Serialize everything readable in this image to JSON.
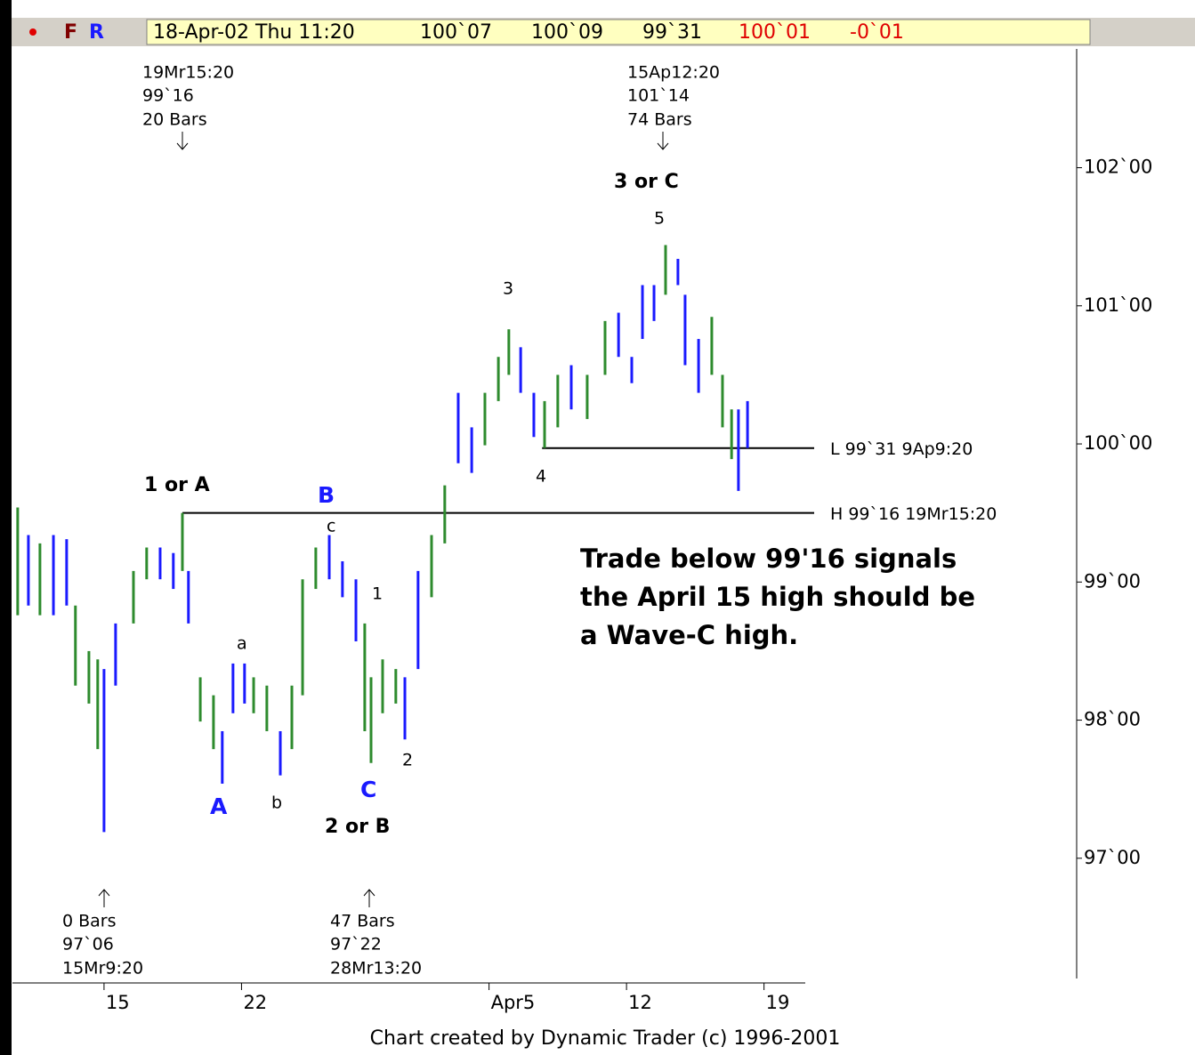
{
  "header": {
    "flag1": "F",
    "flag2": "R",
    "date": "18-Apr-02 Thu 11:20",
    "open": "100`07",
    "high": "100`09",
    "low": "99`31",
    "close": "100`01",
    "change": "-0`01"
  },
  "chart_data": {
    "type": "range",
    "footer": "Chart created by Dynamic Trader (c) 1996-2001",
    "xlim": [
      -3.33,
      25.5
    ],
    "xticks": [
      {
        "value": 0,
        "label": "15"
      },
      {
        "value": 5,
        "label": "22"
      },
      {
        "value": 14,
        "label": "Apr5"
      },
      {
        "value": 19,
        "label": "12"
      },
      {
        "value": 24,
        "label": "19"
      }
    ],
    "ylim": [
      96.11,
      102.86
    ],
    "yticks": [
      {
        "value": 102,
        "label": "102`00"
      },
      {
        "value": 101,
        "label": "101`00"
      },
      {
        "value": 100,
        "label": "100`00"
      },
      {
        "value": 99,
        "label": "99`00"
      },
      {
        "value": 98,
        "label": "98`00"
      },
      {
        "value": 97,
        "label": "97`00"
      }
    ],
    "bars": {
      "x": [
        -3.14,
        -2.75,
        -2.33,
        -1.84,
        -1.36,
        -1.04,
        -0.55,
        -0.23,
        0,
        0.42,
        1.07,
        1.55,
        2.04,
        2.52,
        2.85,
        3.07,
        3.5,
        3.98,
        4.3,
        4.69,
        5.11,
        5.44,
        5.92,
        6.41,
        6.83,
        7.22,
        7.7,
        8.19,
        8.67,
        9.16,
        9.48,
        9.71,
        10.13,
        10.61,
        10.94,
        11.42,
        11.91,
        12.39,
        12.88,
        13.37,
        13.85,
        14.34,
        14.72,
        15.15,
        15.63,
        16.02,
        16.5,
        16.99,
        17.57,
        18.22,
        18.71,
        19.19,
        19.58,
        20,
        20.42,
        20.87,
        21.13,
        21.62,
        22.1,
        22.49,
        22.82,
        23.07,
        23.4
      ],
      "high": [
        99.54,
        99.34,
        99.28,
        99.34,
        99.31,
        98.83,
        98.5,
        98.44,
        98.37,
        98.7,
        99.08,
        99.25,
        99.25,
        99.21,
        99.5,
        99.08,
        98.31,
        98.18,
        97.92,
        98.41,
        98.41,
        98.31,
        98.25,
        97.92,
        98.25,
        99.02,
        99.25,
        99.34,
        99.15,
        99.02,
        98.7,
        98.31,
        98.44,
        98.37,
        98.31,
        99.08,
        99.34,
        99.7,
        100.37,
        100.12,
        100.37,
        100.63,
        100.83,
        100.7,
        100.37,
        100.31,
        100.5,
        100.57,
        100.5,
        100.89,
        100.95,
        100.63,
        101.15,
        101.15,
        101.44,
        101.34,
        101.08,
        100.76,
        100.92,
        100.5,
        100.25,
        100.25,
        100.31
      ],
      "low": [
        98.76,
        98.83,
        98.76,
        98.76,
        98.83,
        98.25,
        98.12,
        97.79,
        97.19,
        98.25,
        98.7,
        99.02,
        99.02,
        98.95,
        99.08,
        98.7,
        97.99,
        97.79,
        97.54,
        98.05,
        98.12,
        98.05,
        97.92,
        97.6,
        97.79,
        98.18,
        98.95,
        99.02,
        98.89,
        98.57,
        97.92,
        97.69,
        98.05,
        98.12,
        97.86,
        98.37,
        98.89,
        99.28,
        99.86,
        99.79,
        99.99,
        100.31,
        100.5,
        100.37,
        100.05,
        99.97,
        100.12,
        100.25,
        100.18,
        100.5,
        100.63,
        100.44,
        100.76,
        100.89,
        101.08,
        101.15,
        100.57,
        100.37,
        100.5,
        100.12,
        99.89,
        99.66,
        99.97
      ],
      "color": [
        "#2e8b2e",
        "#1a1aff",
        "#2e8b2e",
        "#1a1aff",
        "#1a1aff",
        "#2e8b2e",
        "#2e8b2e",
        "#2e8b2e",
        "#1a1aff",
        "#1a1aff",
        "#2e8b2e",
        "#2e8b2e",
        "#1a1aff",
        "#1a1aff",
        "#2e8b2e",
        "#1a1aff",
        "#2e8b2e",
        "#2e8b2e",
        "#1a1aff",
        "#1a1aff",
        "#1a1aff",
        "#2e8b2e",
        "#2e8b2e",
        "#1a1aff",
        "#2e8b2e",
        "#2e8b2e",
        "#2e8b2e",
        "#1a1aff",
        "#1a1aff",
        "#1a1aff",
        "#2e8b2e",
        "#2e8b2e",
        "#2e8b2e",
        "#2e8b2e",
        "#1a1aff",
        "#1a1aff",
        "#2e8b2e",
        "#2e8b2e",
        "#1a1aff",
        "#1a1aff",
        "#2e8b2e",
        "#2e8b2e",
        "#2e8b2e",
        "#1a1aff",
        "#1a1aff",
        "#2e8b2e",
        "#2e8b2e",
        "#1a1aff",
        "#2e8b2e",
        "#2e8b2e",
        "#1a1aff",
        "#1a1aff",
        "#1a1aff",
        "#1a1aff",
        "#2e8b2e",
        "#1a1aff",
        "#1a1aff",
        "#1a1aff",
        "#2e8b2e",
        "#2e8b2e",
        "#2e8b2e",
        "#1a1aff",
        "#1a1aff"
      ]
    },
    "levels": [
      {
        "label": "H 99`16 19Mr15:20",
        "value": 99.5,
        "x_start": 2.85
      },
      {
        "label": "L 99`31 9Ap9:20",
        "value": 99.97,
        "x_start": 15.93
      }
    ],
    "annotations": [
      "19Mr15:20",
      "99`16",
      "20 Bars",
      "15Ap12:20",
      "101`14",
      "74 Bars",
      "0 Bars",
      "97`06",
      "15Mr9:20",
      "47 Bars",
      "97`22",
      "28Mr13:20"
    ],
    "waves": [
      "1 or A",
      "B",
      "c",
      "a",
      "b",
      "A",
      "C",
      "2 or B",
      "1",
      "2",
      "3",
      "4",
      "5",
      "3 or C"
    ],
    "note": [
      "Trade below 99'16 signals",
      "the April 15 high should be",
      "a Wave-C high."
    ]
  }
}
